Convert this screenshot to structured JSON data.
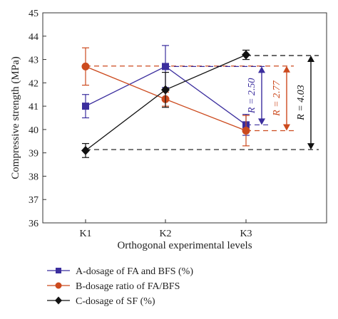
{
  "chart_data": {
    "type": "line",
    "xlabel": "Orthogonal experimental levels",
    "ylabel": "Compressive strength (MPa)",
    "categories": [
      "K1",
      "K2",
      "K3"
    ],
    "ylim": [
      36,
      45
    ],
    "yticks": [
      36,
      37,
      38,
      39,
      40,
      41,
      42,
      43,
      44,
      45
    ],
    "series": [
      {
        "name": "A-dosage of FA and BFS (%)",
        "color": "#3b2e9e",
        "marker": "square",
        "values": [
          41.0,
          42.7,
          40.2
        ],
        "errors": [
          0.5,
          0.9,
          0.45
        ]
      },
      {
        "name": "B-dosage ratio of FA/BFS",
        "color": "#cc4a1e",
        "marker": "circle",
        "values": [
          42.7,
          41.3,
          39.95
        ],
        "errors": [
          0.8,
          0.3,
          0.65
        ]
      },
      {
        "name": "C-dosage of SF (%)",
        "color": "#111111",
        "marker": "diamond",
        "values": [
          39.1,
          41.7,
          43.2
        ],
        "errors": [
          0.3,
          0.75,
          0.2
        ]
      }
    ],
    "ranges": [
      {
        "label": "R = 2.50",
        "color": "#3b2e9e",
        "top": 42.7,
        "bottom": 40.2
      },
      {
        "label": "R = 2.77",
        "color": "#cc4a1e",
        "top": 42.72,
        "bottom": 39.95
      },
      {
        "label": "R = 4.03",
        "color": "#111111",
        "top": 43.17,
        "bottom": 39.14
      }
    ],
    "legend_position": "bottom"
  }
}
